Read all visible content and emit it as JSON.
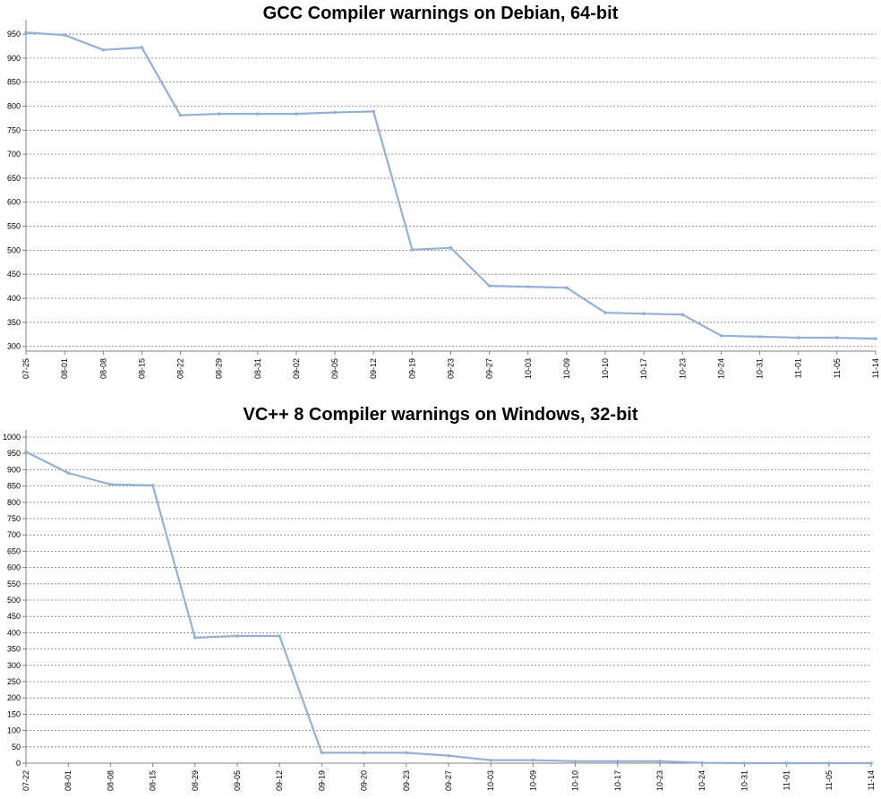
{
  "chart_data": [
    {
      "type": "line",
      "title": "GCC Compiler warnings on Debian, 64-bit",
      "xlabel": "",
      "ylabel": "",
      "categories": [
        "07-25",
        "08-01",
        "08-08",
        "08-15",
        "08-22",
        "08-29",
        "08-31",
        "09-02",
        "09-05",
        "09-12",
        "09-19",
        "09-23",
        "09-27",
        "10-03",
        "10-09",
        "10-10",
        "10-17",
        "10-23",
        "10-24",
        "10-31",
        "11-01",
        "11-05",
        "11-14"
      ],
      "series": [
        {
          "values": [
            953,
            948,
            917,
            922,
            781,
            784,
            784,
            784,
            787,
            789,
            501,
            505,
            426,
            424,
            422,
            370,
            368,
            366,
            322,
            320,
            318,
            318,
            316
          ]
        }
      ],
      "yticks": [
        300,
        350,
        400,
        450,
        500,
        550,
        600,
        650,
        700,
        750,
        800,
        850,
        900,
        950
      ],
      "ylim": [
        290,
        965
      ],
      "grid": true,
      "line_color": "#94B0D6"
    },
    {
      "type": "line",
      "title": "VC++ 8 Compiler warnings on Windows, 32-bit",
      "xlabel": "",
      "ylabel": "",
      "categories": [
        "07-22",
        "08-01",
        "08-08",
        "08-15",
        "08-29",
        "09-05",
        "09-12",
        "09-19",
        "09-20",
        "09-23",
        "09-27",
        "10-03",
        "10-09",
        "10-10",
        "10-17",
        "10-23",
        "10-24",
        "10-31",
        "11-01",
        "11-05",
        "11-14"
      ],
      "series": [
        {
          "values": [
            955,
            890,
            855,
            852,
            385,
            390,
            390,
            32,
            32,
            32,
            23,
            9,
            9,
            6,
            6,
            6,
            1,
            0,
            0,
            0,
            0
          ]
        }
      ],
      "yticks": [
        0,
        50,
        100,
        150,
        200,
        250,
        300,
        350,
        400,
        450,
        500,
        550,
        600,
        650,
        700,
        750,
        800,
        850,
        900,
        950,
        1000
      ],
      "ylim": [
        0,
        1000
      ],
      "grid": true,
      "line_color": "#94B0D6"
    }
  ]
}
